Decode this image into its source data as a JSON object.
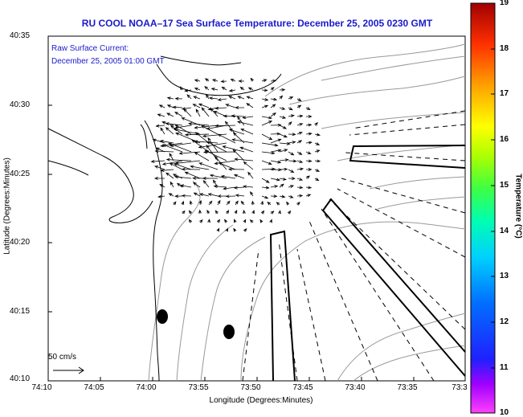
{
  "title": "RU COOL   NOAA–17  Sea Surface Temperature:  December 25, 2005 0230 GMT",
  "current_legend": {
    "line1": "Raw Surface Current:",
    "line2": "December 25, 2005 01:00 GMT",
    "scale_label": "50 cm/s"
  },
  "axes": {
    "ylabel": "Latitude (Degrees:Minutes)",
    "xlabel": "Longitude (Degrees:Minutes)",
    "yticks": [
      "40:35",
      "40:30",
      "40:25",
      "40:20",
      "40:15",
      "40:10"
    ],
    "xticks": [
      "74:10",
      "74:05",
      "74:00",
      "73:55",
      "73:50",
      "73:45",
      "73:40",
      "73:35",
      "73:3"
    ]
  },
  "colorbar": {
    "title": "Temperature (°C)",
    "min": 10,
    "max": 19,
    "ticks": [
      "19",
      "18",
      "17",
      "16",
      "15",
      "14",
      "13",
      "12",
      "11",
      "10"
    ]
  },
  "colors": {
    "title": "#1a1acc",
    "contour": "#999999",
    "coast": "#000000"
  }
}
